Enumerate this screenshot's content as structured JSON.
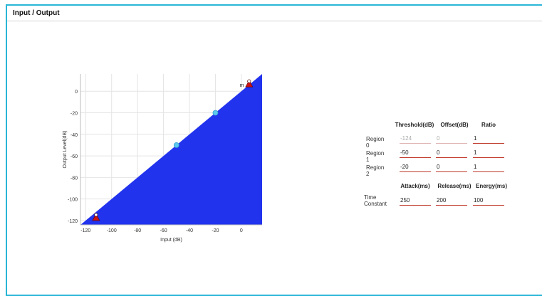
{
  "panel": {
    "title": "Input / Output"
  },
  "chart_data": {
    "type": "area",
    "xlabel": "Input (dB)",
    "ylabel": "Output Level(dB)",
    "xlim": [
      -124,
      16
    ],
    "ylim": [
      -124,
      16
    ],
    "xticks": [
      -120,
      -100,
      -80,
      -60,
      -40,
      -20,
      0
    ],
    "yticks": [
      0,
      -20,
      -40,
      -60,
      -80,
      -100,
      -120
    ],
    "grid": true,
    "fill_color": "#2233ee",
    "series": [
      {
        "x": [
          -124,
          16
        ],
        "y": [
          -124,
          16
        ]
      }
    ],
    "control_points": [
      {
        "x": -50,
        "y": -50
      },
      {
        "x": -20,
        "y": -20
      }
    ],
    "markers": [
      {
        "label": "m",
        "x": 6,
        "y": 6
      },
      {
        "label": "",
        "x": -112,
        "y": -118
      }
    ],
    "point_color": "#5ec8ee",
    "marker_color": "#cc1111"
  },
  "table": {
    "headers": [
      "Threshold(dB)",
      "Offset(dB)",
      "Ratio"
    ],
    "regions": [
      {
        "label": "Region 0",
        "threshold": "-124",
        "offset": "0",
        "ratio": "1"
      },
      {
        "label": "Region 1",
        "threshold": "-50",
        "offset": "0",
        "ratio": "1"
      },
      {
        "label": "Region 2",
        "threshold": "-20",
        "offset": "0",
        "ratio": "1"
      }
    ],
    "time_headers": [
      "Attack(ms)",
      "Release(ms)",
      "Energy(ms)"
    ],
    "time_label_1": "Time",
    "time_label_2": "Constant",
    "attack": "250",
    "release": "200",
    "energy": "100"
  }
}
